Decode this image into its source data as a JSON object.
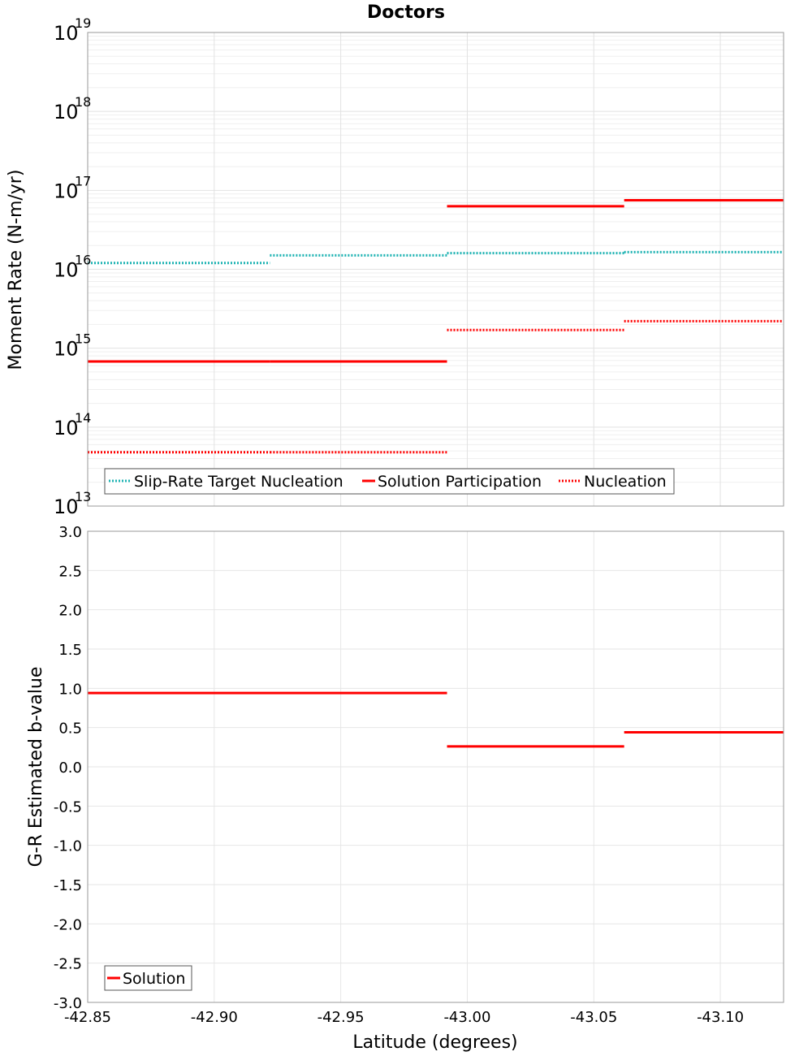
{
  "chart_data": [
    {
      "type": "line",
      "title": "Doctors",
      "ylabel": "Moment Rate (N-m/yr)",
      "yscale": "log",
      "ylim": [
        10000000000000.0,
        1e+19
      ],
      "ytick_base": "10",
      "ytick_exponents": [
        "13",
        "14",
        "15",
        "16",
        "17",
        "18",
        "19"
      ],
      "xlim": [
        -42.85,
        -43.125
      ],
      "x_edges": [
        -42.85,
        -42.922,
        -42.992,
        -43.062,
        -43.125
      ],
      "grid": true,
      "legend_position": "bottom-left",
      "series": [
        {
          "name": "Slip-Rate Target Nucleation",
          "color": "#1fb3b3",
          "style": "dotted",
          "values": [
            1.2e+16,
            1.5e+16,
            1.6e+16,
            1.65e+16
          ]
        },
        {
          "name": "Solution Participation",
          "color": "#ff0000",
          "style": "solid",
          "values": [
            680000000000000.0,
            680000000000000.0,
            6.3e+16,
            7.5e+16
          ]
        },
        {
          "name": "Nucleation",
          "color": "#ff0000",
          "style": "dotted",
          "values": [
            48000000000000.0,
            48000000000000.0,
            1700000000000000.0,
            2200000000000000.0
          ]
        }
      ]
    },
    {
      "type": "line",
      "xlabel": "Latitude (degrees)",
      "ylabel": "G-R Estimated b-value",
      "ylim": [
        -3.0,
        3.0
      ],
      "yticks": [
        "3.0",
        "2.5",
        "2.0",
        "1.5",
        "1.0",
        "0.5",
        "0.0",
        "-0.5",
        "-1.0",
        "-1.5",
        "-2.0",
        "-2.5",
        "-3.0"
      ],
      "xlim": [
        -42.85,
        -43.125
      ],
      "xticks": [
        "-42.85",
        "-42.90",
        "-42.95",
        "-43.00",
        "-43.05",
        "-43.10"
      ],
      "x_edges": [
        -42.85,
        -42.992,
        -43.062,
        -43.125
      ],
      "grid": true,
      "legend_position": "bottom-left",
      "series": [
        {
          "name": "Solution",
          "color": "#ff0000",
          "style": "solid",
          "values": [
            0.94,
            0.26,
            0.44
          ]
        }
      ]
    }
  ]
}
